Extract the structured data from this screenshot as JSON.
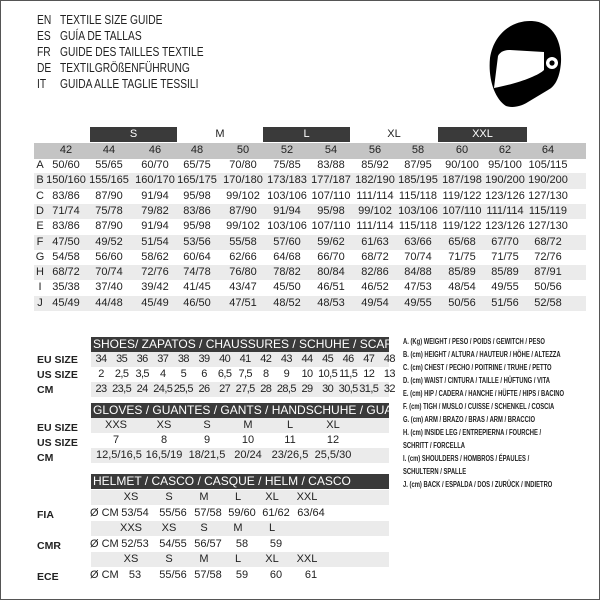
{
  "titles": [
    {
      "lang": "EN",
      "text": "TEXTILE SIZE GUIDE"
    },
    {
      "lang": "ES",
      "text": "GUÍA DE TALLAS"
    },
    {
      "lang": "FR",
      "text": "GUIDE DES TAILLES TEXTILE"
    },
    {
      "lang": "DE",
      "text": "TEXTILGRÖßENFÜHRUNG"
    },
    {
      "lang": "IT",
      "text": "GUIDA ALLE TAGLIE TESSILI"
    }
  ],
  "icon": "helmet-icon",
  "textile": {
    "size_groups": [
      {
        "label": "S",
        "style": "dark"
      },
      {
        "label": "M",
        "style": "light"
      },
      {
        "label": "L",
        "style": "dark"
      },
      {
        "label": "XL",
        "style": "light"
      },
      {
        "label": "XXL",
        "style": "dark"
      }
    ],
    "columns": [
      "42",
      "44",
      "46",
      "48",
      "50",
      "52",
      "54",
      "56",
      "58",
      "60",
      "62",
      "64"
    ],
    "rows": [
      {
        "key": "A",
        "values": [
          "50/60",
          "55/65",
          "60/70",
          "65/75",
          "70/80",
          "75/85",
          "83/88",
          "85/92",
          "87/95",
          "90/100",
          "95/100",
          "105/115"
        ]
      },
      {
        "key": "B",
        "values": [
          "150/160",
          "155/165",
          "160/170",
          "165/175",
          "170/180",
          "173/183",
          "177/187",
          "182/190",
          "185/195",
          "187/198",
          "190/200",
          "190/200"
        ]
      },
      {
        "key": "C",
        "values": [
          "83/86",
          "87/90",
          "91/94",
          "95/98",
          "99/102",
          "103/106",
          "107/110",
          "111/114",
          "115/118",
          "119/122",
          "123/126",
          "127/130"
        ]
      },
      {
        "key": "D",
        "values": [
          "71/74",
          "75/78",
          "79/82",
          "83/86",
          "87/90",
          "91/94",
          "95/98",
          "99/102",
          "103/106",
          "107/110",
          "111/114",
          "115/119"
        ]
      },
      {
        "key": "E",
        "values": [
          "83/86",
          "87/90",
          "91/94",
          "95/98",
          "99/102",
          "103/106",
          "107/110",
          "111/114",
          "115/118",
          "119/122",
          "123/126",
          "127/130"
        ]
      },
      {
        "key": "F",
        "values": [
          "47/50",
          "49/52",
          "51/54",
          "53/56",
          "55/58",
          "57/60",
          "59/62",
          "61/63",
          "63/66",
          "65/68",
          "67/70",
          "68/72"
        ]
      },
      {
        "key": "G",
        "values": [
          "54/58",
          "56/60",
          "58/62",
          "60/64",
          "62/66",
          "64/68",
          "66/70",
          "68/72",
          "70/74",
          "71/75",
          "71/75",
          "72/76"
        ]
      },
      {
        "key": "H",
        "values": [
          "68/72",
          "70/74",
          "72/76",
          "74/78",
          "76/80",
          "78/82",
          "80/84",
          "82/86",
          "84/88",
          "85/89",
          "85/89",
          "87/91"
        ]
      },
      {
        "key": "I",
        "values": [
          "35/38",
          "37/40",
          "39/42",
          "41/45",
          "43/47",
          "45/50",
          "46/51",
          "46/52",
          "47/53",
          "48/54",
          "49/55",
          "50/56"
        ]
      },
      {
        "key": "J",
        "values": [
          "45/49",
          "44/48",
          "45/49",
          "46/50",
          "47/51",
          "48/52",
          "48/53",
          "49/54",
          "49/55",
          "50/56",
          "51/56",
          "52/58"
        ]
      }
    ]
  },
  "shoes": {
    "title": "SHOES/ ZAPATOS / CHAUSSURES / SCHUHE / SCARPE",
    "rows": [
      {
        "label": "EU SIZE",
        "values": [
          "34",
          "35",
          "36",
          "37",
          "38",
          "39",
          "40",
          "41",
          "42",
          "43",
          "44",
          "45",
          "46",
          "47",
          "48"
        ]
      },
      {
        "label": "US SIZE",
        "values": [
          "2",
          "2,5",
          "3,5",
          "4",
          "5",
          "6",
          "6,5",
          "7,5",
          "8",
          "9",
          "10",
          "10,5",
          "11,5",
          "12",
          "13"
        ]
      },
      {
        "label": "CM",
        "values": [
          "23",
          "23,5",
          "24",
          "24,5",
          "25,5",
          "26",
          "27",
          "27,5",
          "28",
          "28,5",
          "29",
          "30",
          "30,5",
          "31,5",
          "32"
        ]
      }
    ]
  },
  "gloves": {
    "title": "GLOVES / GUANTES / GANTS / HANDSCHUHE / GUANTI",
    "rows": [
      {
        "label": "EU SIZE",
        "values": [
          "XXS",
          "XS",
          "S",
          "M",
          "L",
          "XL"
        ]
      },
      {
        "label": "US SIZE",
        "values": [
          "7",
          "8",
          "9",
          "10",
          "11",
          "12"
        ]
      },
      {
        "label": "CM",
        "values": [
          "12,5/16,5",
          "16,5/19",
          "18/21,5",
          "20/24",
          "23/26,5",
          "25,5/30"
        ]
      }
    ]
  },
  "helmet": {
    "title": "HELMET / CASCO / CASQUE / HELM / CASCO",
    "groups": [
      {
        "label": "FIA",
        "unit": "Ø CM",
        "sizes": [
          "XS",
          "S",
          "M",
          "L",
          "XL",
          "XXL"
        ],
        "values": [
          "53/54",
          "55/56",
          "57/58",
          "59/60",
          "61/62",
          "63/64"
        ]
      },
      {
        "label": "CMR",
        "unit": "Ø CM",
        "sizes": [
          "XXS",
          "XS",
          "S",
          "M",
          "L"
        ],
        "values": [
          "52/53",
          "54/55",
          "56/57",
          "58",
          "59"
        ]
      },
      {
        "label": "ECE",
        "unit": "Ø CM",
        "sizes": [
          "XS",
          "S",
          "M",
          "L",
          "XL",
          "XXL"
        ],
        "values": [
          "53",
          "55/56",
          "57/58",
          "59",
          "60",
          "61"
        ]
      }
    ]
  },
  "legend": [
    "A. (Kg) WEIGHT / PESO / POIDS / GEWITCH / PESO",
    "B. (cm) HEIGHT / ALTURA / HAUTEUR / HÖHE / ALTEZZA",
    "C. (cm) CHEST / PECHO / POITRINE / TRUHE / PETTO",
    "D. (cm) WAIST / CINTURA / TAILLE / HÜFTUNG / VITA",
    "E. (cm) HIP / CADERA / HANCHE / HÜFTE / HIPS /  BACINO",
    "F.  (cm) TIGH / MUSLO / CUISSE / SCHENKEL / COSCIA",
    "G. (cm) ARM  / BRAZO / BRAS / ARM / BRACCIO",
    "H. (cm) INSIDE LEG / ENTREPIERNA / FOURCHE /",
    "SCHRITT / FORCELLA",
    "I.  (cm) SHOULDERS / HOMBROS / ÉPAULES /",
    "SCHULTERN / SPALLE",
    "J. (cm) BACK / ESPALDA / DOS / ZURÜCK / INDIETRO"
  ]
}
